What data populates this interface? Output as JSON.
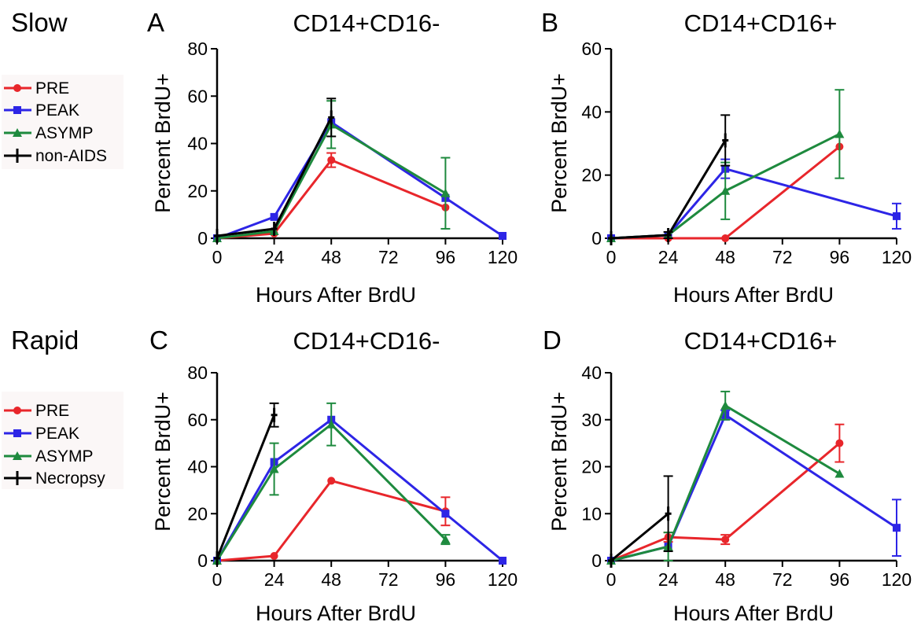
{
  "groups": [
    {
      "title": "Slow",
      "legend": [
        {
          "label": "PRE",
          "color": "#e8262b",
          "marker": "circle"
        },
        {
          "label": "PEAK",
          "color": "#2d25e6",
          "marker": "square"
        },
        {
          "label": "ASYMP",
          "color": "#1e8a3e",
          "marker": "triangle"
        },
        {
          "label": "non-AIDS",
          "color": "#000000",
          "marker": "plus"
        }
      ]
    },
    {
      "title": "Rapid",
      "legend": [
        {
          "label": "PRE",
          "color": "#e8262b",
          "marker": "circle"
        },
        {
          "label": "PEAK",
          "color": "#2d25e6",
          "marker": "square"
        },
        {
          "label": "ASYMP",
          "color": "#1e8a3e",
          "marker": "triangle"
        },
        {
          "label": "Necropsy",
          "color": "#000000",
          "marker": "plus"
        }
      ]
    }
  ],
  "chart_data": [
    {
      "type": "line",
      "letter": "A",
      "title": "CD14+CD16-",
      "xlabel": "Hours After BrdU",
      "ylabel": "Percent BrdU+",
      "xticks": [
        0,
        24,
        48,
        72,
        96,
        120
      ],
      "yticks": [
        0,
        20,
        40,
        60,
        80
      ],
      "xlim": [
        0,
        120
      ],
      "ylim": [
        0,
        80
      ],
      "series": [
        {
          "name": "PRE",
          "color": "#e8262b",
          "marker": "circle",
          "x": [
            0,
            24,
            48,
            96
          ],
          "y": [
            0,
            2,
            33,
            13
          ],
          "err": [
            0,
            0,
            3,
            0
          ]
        },
        {
          "name": "PEAK",
          "color": "#2d25e6",
          "marker": "square",
          "x": [
            0,
            24,
            48,
            96,
            120
          ],
          "y": [
            0,
            9,
            49,
            17,
            1
          ],
          "err": [
            0,
            0,
            0,
            0,
            0
          ]
        },
        {
          "name": "ASYMP",
          "color": "#1e8a3e",
          "marker": "triangle",
          "x": [
            0,
            24,
            48,
            96
          ],
          "y": [
            0,
            3,
            48,
            19
          ],
          "err": [
            0,
            0,
            10,
            15
          ]
        },
        {
          "name": "non-AIDS",
          "color": "#000000",
          "marker": "plus",
          "x": [
            0,
            24,
            48
          ],
          "y": [
            1,
            4,
            51
          ],
          "err": [
            0,
            0,
            8
          ]
        }
      ]
    },
    {
      "type": "line",
      "letter": "B",
      "title": "CD14+CD16+",
      "xlabel": "Hours After BrdU",
      "ylabel": "Percent BrdU+",
      "xticks": [
        0,
        24,
        48,
        72,
        96,
        120
      ],
      "yticks": [
        0,
        20,
        40,
        60
      ],
      "xlim": [
        0,
        120
      ],
      "ylim": [
        0,
        60
      ],
      "series": [
        {
          "name": "PRE",
          "color": "#e8262b",
          "marker": "circle",
          "x": [
            0,
            24,
            48,
            96
          ],
          "y": [
            0,
            0,
            0,
            29
          ],
          "err": [
            0,
            0,
            0,
            0
          ]
        },
        {
          "name": "PEAK",
          "color": "#2d25e6",
          "marker": "square",
          "x": [
            0,
            24,
            48,
            120
          ],
          "y": [
            0,
            1,
            22,
            7
          ],
          "err": [
            0,
            0,
            3,
            4
          ]
        },
        {
          "name": "ASYMP",
          "color": "#1e8a3e",
          "marker": "triangle",
          "x": [
            0,
            24,
            48,
            96
          ],
          "y": [
            0,
            1,
            15,
            33
          ],
          "err": [
            0,
            0,
            9,
            14
          ]
        },
        {
          "name": "non-AIDS",
          "color": "#000000",
          "marker": "plus",
          "x": [
            0,
            24,
            48
          ],
          "y": [
            0,
            1,
            31
          ],
          "err": [
            0,
            1,
            8
          ]
        }
      ]
    },
    {
      "type": "line",
      "letter": "C",
      "title": "CD14+CD16-",
      "xlabel": "Hours After BrdU",
      "ylabel": "Percent BrdU+",
      "xticks": [
        0,
        24,
        48,
        72,
        96,
        120
      ],
      "yticks": [
        0,
        20,
        40,
        60,
        80
      ],
      "xlim": [
        0,
        120
      ],
      "ylim": [
        0,
        80
      ],
      "series": [
        {
          "name": "PRE",
          "color": "#e8262b",
          "marker": "circle",
          "x": [
            0,
            24,
            48,
            96
          ],
          "y": [
            0,
            2,
            34,
            21
          ],
          "err": [
            0,
            0,
            0,
            6
          ]
        },
        {
          "name": "PEAK",
          "color": "#2d25e6",
          "marker": "square",
          "x": [
            0,
            24,
            48,
            96,
            120
          ],
          "y": [
            0,
            42,
            60,
            20,
            0
          ],
          "err": [
            0,
            0,
            0,
            0,
            0
          ]
        },
        {
          "name": "ASYMP",
          "color": "#1e8a3e",
          "marker": "triangle",
          "x": [
            0,
            24,
            48,
            96
          ],
          "y": [
            0,
            39,
            58,
            9
          ],
          "err": [
            0,
            11,
            9,
            2
          ]
        },
        {
          "name": "Necropsy",
          "color": "#000000",
          "marker": "plus",
          "x": [
            0,
            24
          ],
          "y": [
            1,
            62
          ],
          "err": [
            0,
            5
          ]
        }
      ]
    },
    {
      "type": "line",
      "letter": "D",
      "title": "CD14+CD16+",
      "xlabel": "Hours After BrdU",
      "ylabel": "Percent BrdU+",
      "xticks": [
        0,
        24,
        48,
        72,
        96,
        120
      ],
      "yticks": [
        0,
        10,
        20,
        30,
        40
      ],
      "xlim": [
        0,
        120
      ],
      "ylim": [
        0,
        40
      ],
      "series": [
        {
          "name": "PRE",
          "color": "#e8262b",
          "marker": "circle",
          "x": [
            0,
            24,
            48,
            96
          ],
          "y": [
            0,
            5,
            4.5,
            25
          ],
          "err": [
            0,
            1,
            1,
            4
          ]
        },
        {
          "name": "PEAK",
          "color": "#2d25e6",
          "marker": "square",
          "x": [
            0,
            24,
            48,
            120
          ],
          "y": [
            0,
            3,
            31,
            7
          ],
          "err": [
            0,
            0,
            1,
            6
          ]
        },
        {
          "name": "ASYMP",
          "color": "#1e8a3e",
          "marker": "triangle",
          "x": [
            0,
            24,
            48,
            96
          ],
          "y": [
            0,
            3,
            33,
            18.5
          ],
          "err": [
            0,
            3,
            3,
            0
          ]
        },
        {
          "name": "Necropsy",
          "color": "#000000",
          "marker": "plus",
          "x": [
            0,
            24
          ],
          "y": [
            0,
            10
          ],
          "err": [
            0,
            8
          ]
        }
      ]
    }
  ]
}
